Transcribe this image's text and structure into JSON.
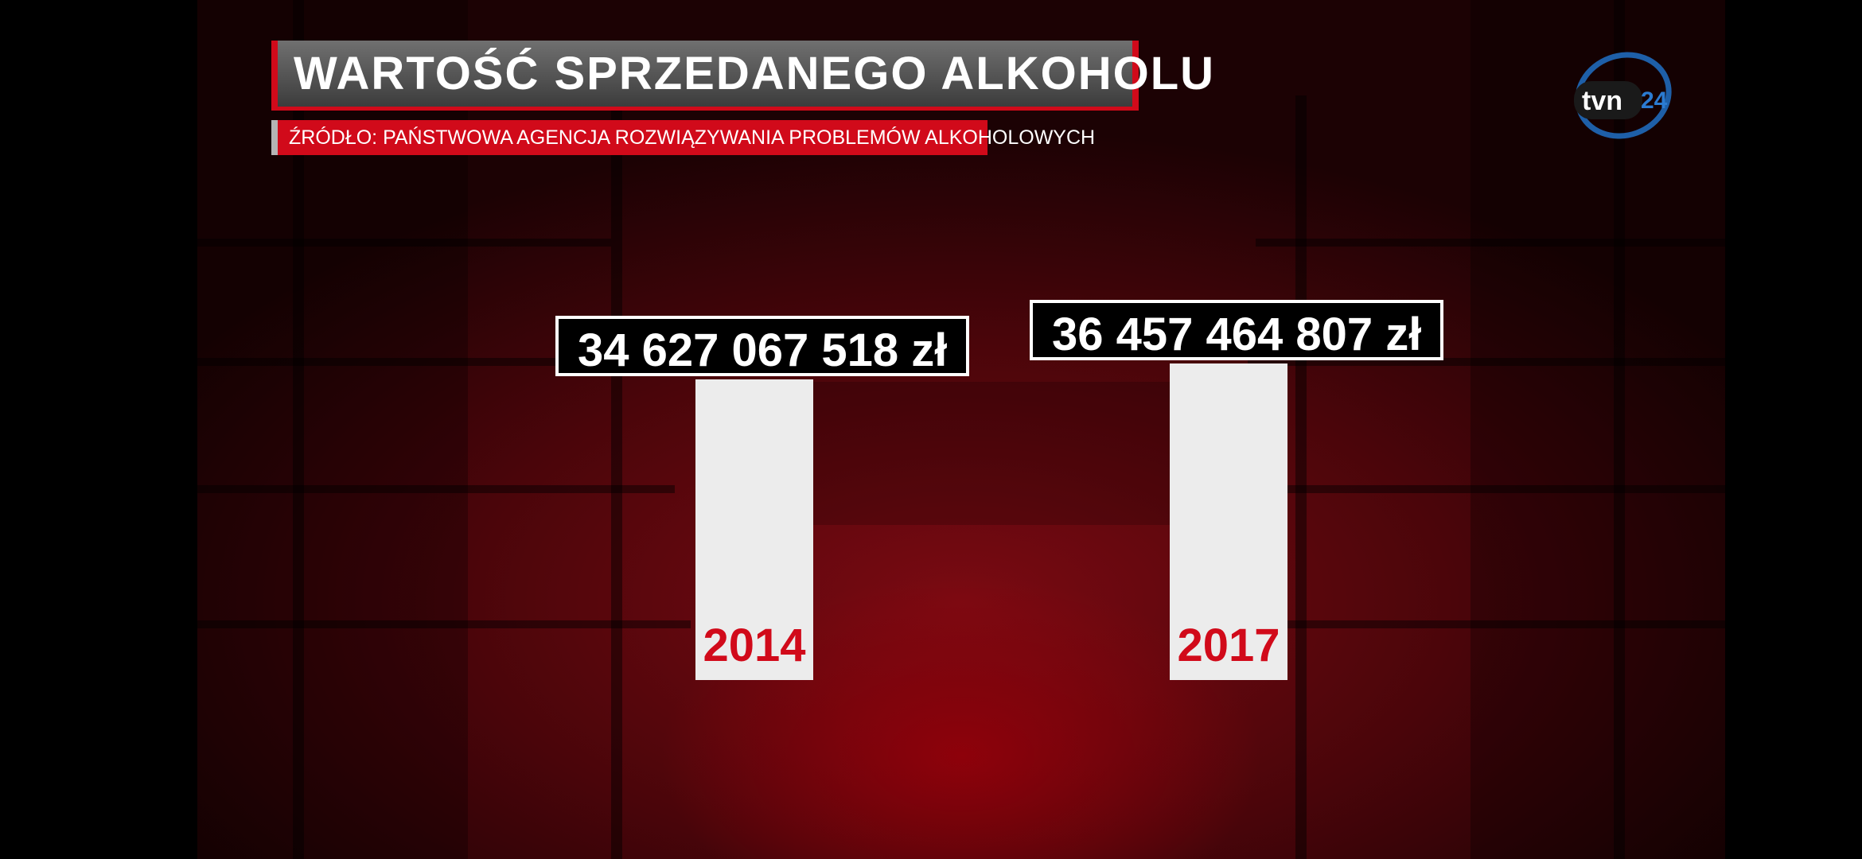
{
  "chart_data": {
    "type": "bar",
    "title": "WARTOŚĆ SPRZEDANEGO ALKOHOLU",
    "subtitle": "ŹRÓDŁO: PAŃSTWOWA AGENCJA ROZWIĄZYWANIA PROBLEMÓW ALKOHOLOWYCH",
    "categories": [
      "2014",
      "2017"
    ],
    "values": [
      34627067518,
      36457464807
    ],
    "value_labels": [
      "34 627 067 518 zł",
      "36 457 464 807 zł"
    ],
    "bar_color": "#ececec",
    "year_color": "#d10a1a"
  },
  "logo": {
    "text": "tvn",
    "badge": "24"
  },
  "colors": {
    "accent": "#d10a1a"
  }
}
